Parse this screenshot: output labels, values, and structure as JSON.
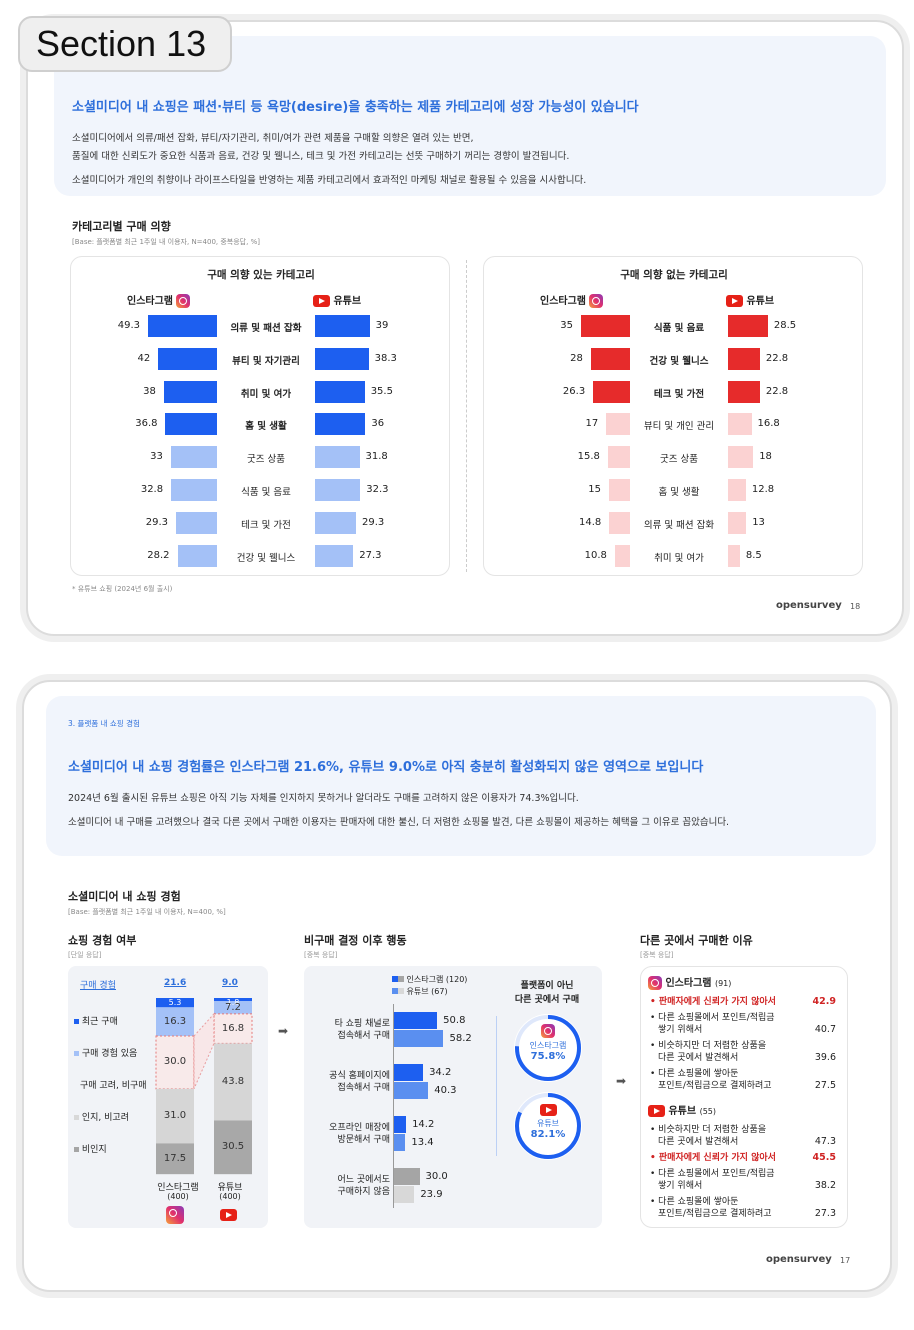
{
  "section_tag": "Section 13",
  "slide1": {
    "headline": "소셜미디어 내 쇼핑은 패션·뷰티 등 욕망(desire)을 충족하는 제품 카테고리에 성장 가능성이 있습니다",
    "body1": "소셜미디어에서 의류/패션 잡화, 뷰티/자기관리, 취미/여가 관련 제품을 구매할 의향은 열려 있는 반면,",
    "body2": "품질에 대한 신뢰도가 중요한 식품과 음료, 건강 및 웰니스, 테크 및 가전 카테고리는 선뜻 구매하기 꺼리는 경향이 발견됩니다.",
    "body3": "소셜미디어가 개인의 취향이나 라이프스타일을 반영하는 제품 카테고리에서 효과적인 마케팅 채널로 활용될 수 있음을 시사합니다.",
    "section_title": "카테고리별 구매 의향",
    "base": "[Base: 플랫폼별 최근 1주일 내 이용자, N=400, 중복응답, %]",
    "footnote": "* 유튜브 쇼핑 (2024년 6월 출시)",
    "brand": "opensurvey",
    "page": "18",
    "instagram_label": "인스타그램",
    "youtube_label": "유튜브",
    "colors": {
      "blue_dark": "#1d5ff0",
      "blue_light": "#a4c1f7",
      "red_dark": "#e62b2b",
      "red_light": "#fbd2d2"
    }
  },
  "chart_data": [
    {
      "type": "bar",
      "title": "구매 의향 있는 카테고리",
      "categories": [
        "의류 및 패션 잡화",
        "뷰티 및 자기관리",
        "취미 및 여가",
        "홈 및 생활",
        "굿즈 상품",
        "식품 및 음료",
        "테크 및 가전",
        "건강 및 웰니스"
      ],
      "series": [
        {
          "name": "인스타그램",
          "values": [
            49.3,
            42.0,
            38.0,
            36.8,
            33.0,
            32.8,
            29.3,
            28.2
          ]
        },
        {
          "name": "유튜브",
          "values": [
            39.0,
            38.3,
            35.5,
            36.0,
            31.8,
            32.3,
            29.3,
            27.3
          ]
        }
      ],
      "bold_categories": [
        0,
        1,
        2,
        3
      ],
      "ylim": [
        0,
        50
      ]
    },
    {
      "type": "bar",
      "title": "구매 의향 없는 카테고리",
      "categories": [
        "식품 및 음료",
        "건강 및 웰니스",
        "테크 및 가전",
        "뷰티 및 개인 관리",
        "굿즈 상품",
        "홈 및 생활",
        "의류 및 패션 잡화",
        "취미 및 여가"
      ],
      "series": [
        {
          "name": "인스타그램",
          "values": [
            35.0,
            28.0,
            26.3,
            17.0,
            15.8,
            15.0,
            14.8,
            10.8
          ]
        },
        {
          "name": "유튜브",
          "values": [
            28.5,
            22.8,
            22.8,
            16.8,
            18.0,
            12.8,
            13.0,
            8.5
          ]
        }
      ],
      "bold_categories": [
        0,
        1,
        2
      ],
      "ylim": [
        0,
        50
      ]
    },
    {
      "type": "bar",
      "title": "쇼핑 경험 여부",
      "categories": [
        "인스타그램 (400)",
        "유튜브 (400)"
      ],
      "series": [
        {
          "name": "최근 구매",
          "values": [
            5.3,
            1.8
          ]
        },
        {
          "name": "구매 경험 있음",
          "values": [
            16.3,
            7.2
          ]
        },
        {
          "name": "구매 고려, 비구매",
          "values": [
            30.0,
            16.8
          ]
        },
        {
          "name": "인지, 비고려",
          "values": [
            31.0,
            43.8
          ]
        },
        {
          "name": "비인지",
          "values": [
            17.5,
            30.5
          ]
        }
      ],
      "totals": [
        21.6,
        9.0
      ]
    },
    {
      "type": "bar",
      "title": "비구매 결정 이후 행동",
      "categories": [
        "타 쇼핑 채널로 접속해서 구매",
        "공식 홈페이지에 접속해서 구매",
        "오프라인 매장에 방문해서 구매",
        "어느 곳에서도 구매하지 않음"
      ],
      "series": [
        {
          "name": "인스타그램 (120)",
          "values": [
            50.8,
            34.2,
            14.2,
            30.0
          ]
        },
        {
          "name": "유튜브 (67)",
          "values": [
            58.2,
            40.3,
            13.4,
            23.9
          ]
        }
      ]
    }
  ],
  "slide2": {
    "breadcrumb": "3. 플랫폼 내 쇼핑 경험",
    "headline": "소셜미디어 내 쇼핑 경험률은 인스타그램 21.6%, 유튜브 9.0%로 아직 충분히 활성화되지 않은 영역으로 보입니다",
    "body1": "2024년 6월 출시된 유튜브 쇼핑은 아직 기능 자체를 인지하지 못하거나 알더라도 구매를 고려하지 않은 이용자가 74.3%입니다.",
    "body2": "소셜미디어 내 구매를 고려했으나 결국 다른 곳에서 구매한 이용자는 판매자에 대한 불신, 더 저렴한 쇼핑몰 발견, 다른 쇼핑몰이 제공하는 혜택을 그 이유로 꼽았습니다.",
    "section_title": "소셜미디어 내 쇼핑 경험",
    "base": "[Base: 플랫폼별 최근 1주일 내 이용자, N=400, %]",
    "sub1_title": "쇼핑 경험 여부",
    "sub1_note": "[단일 응답]",
    "purchase_exp_label": "구매 경험",
    "total_ig": "21.6",
    "total_yt": "9.0",
    "legend_stack": [
      "최근 구매",
      "구매 경험 있음",
      "구매 고려, 비구매",
      "인지, 비고려",
      "비인지"
    ],
    "ig_stack": [
      "5.3",
      "16.3",
      "30.0",
      "31.0",
      "17.5"
    ],
    "yt_stack": [
      "1.8",
      "7.2",
      "16.8",
      "43.8",
      "30.5"
    ],
    "ig_name": "인스타그램",
    "ig_n": "(400)",
    "yt_name": "유튜브",
    "yt_n": "(400)",
    "sub2_title": "비구매 결정 이후 행동",
    "sub2_note": "[중복 응답]",
    "legend_ig": "인스타그램 (120)",
    "legend_yt": "유튜브 (67)",
    "actions": [
      {
        "l1": "타 쇼핑 채널로",
        "l2": "접속해서 구매",
        "ig": "50.8",
        "yt": "58.2"
      },
      {
        "l1": "공식 홈페이지에",
        "l2": "접속해서 구매",
        "ig": "34.2",
        "yt": "40.3"
      },
      {
        "l1": "오프라인 매장에",
        "l2": "방문해서 구매",
        "ig": "14.2",
        "yt": "13.4"
      },
      {
        "l1": "어느 곳에서도",
        "l2": "구매하지 않음",
        "ig": "30.0",
        "yt": "23.9"
      }
    ],
    "elsewhere_title1": "플랫폼이 아닌",
    "elsewhere_title2": "다른 곳에서 구매",
    "ig_circle_label": "인스타그램",
    "ig_circle_value": "75.8%",
    "yt_circle_label": "유튜브",
    "yt_circle_value": "82.1%",
    "ig_circle_pct": 75.8,
    "yt_circle_pct": 82.1,
    "sub3_title": "다른 곳에서 구매한 이유",
    "sub3_note": "[중복 응답]",
    "ig_reason_header": "인스타그램",
    "ig_reason_n": "(91)",
    "ig_reasons": [
      {
        "l1": "• 판매자에게 신뢰가 가지 않아서",
        "l2": "",
        "v": "42.9",
        "hl": true
      },
      {
        "l1": "• 다른 쇼핑몰에서 포인트/적립금",
        "l2": "쌓기 위해서",
        "v": "40.7",
        "hl": false
      },
      {
        "l1": "• 비슷하지만 더 저렴한 상품을",
        "l2": "다른 곳에서 발견해서",
        "v": "39.6",
        "hl": false
      },
      {
        "l1": "• 다른 쇼핑몰에 쌓아둔",
        "l2": "포인트/적립금으로 결제하려고",
        "v": "27.5",
        "hl": false
      }
    ],
    "yt_reason_header": "유튜브",
    "yt_reason_n": "(55)",
    "yt_reasons": [
      {
        "l1": "• 비슷하지만 더 저렴한 상품을",
        "l2": "다른 곳에서 발견해서",
        "v": "47.3",
        "hl": false
      },
      {
        "l1": "• 판매자에게 신뢰가 가지 않아서",
        "l2": "",
        "v": "45.5",
        "hl": true
      },
      {
        "l1": "• 다른 쇼핑몰에서 포인트/적립금",
        "l2": "쌓기 위해서",
        "v": "38.2",
        "hl": false
      },
      {
        "l1": "• 다른 쇼핑몰에 쌓아둔",
        "l2": "포인트/적립금으로 결제하려고",
        "v": "27.3",
        "hl": false
      }
    ],
    "brand": "opensurvey",
    "page": "17"
  }
}
